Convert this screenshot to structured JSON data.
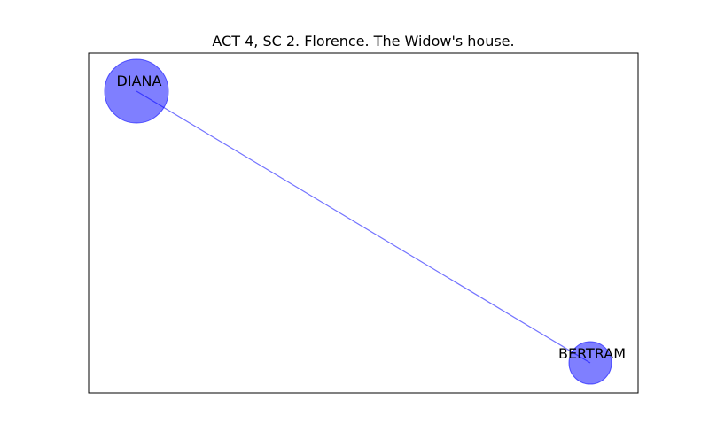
{
  "title": "ACT 4, SC 2. Florence. The Widow's house.",
  "node_color": "#0000ff",
  "edge_color": "#0000ff",
  "frame_color": "#000000",
  "nodes": [
    {
      "id": "DIANA",
      "label": "DIANA"
    },
    {
      "id": "BERTRAM",
      "label": "BERTRAM"
    }
  ],
  "edges": [
    {
      "source": "DIANA",
      "target": "BERTRAM"
    }
  ]
}
